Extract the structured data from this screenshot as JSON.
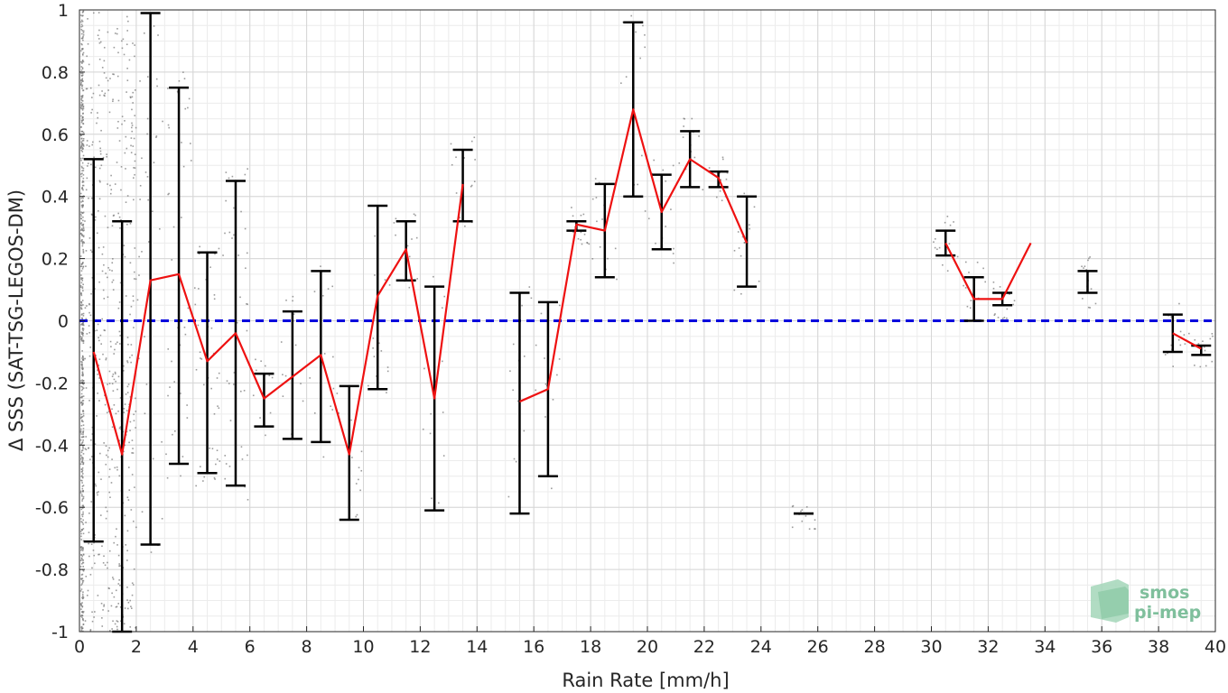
{
  "chart_data": {
    "type": "line",
    "title": "",
    "xlabel": "Rain Rate [mm/h]",
    "ylabel": "Δ SSS (SAT-TSG-LEGOS-DM)",
    "xlim": [
      0,
      40
    ],
    "ylim": [
      -1,
      1
    ],
    "x_ticks": [
      0,
      2,
      4,
      6,
      8,
      10,
      12,
      14,
      16,
      18,
      20,
      22,
      24,
      26,
      28,
      30,
      32,
      34,
      36,
      38,
      40
    ],
    "y_ticks": [
      -1,
      -0.8,
      -0.6,
      -0.4,
      -0.2,
      0,
      0.2,
      0.4,
      0.6,
      0.8,
      1
    ],
    "y_tick_labels": [
      "-1",
      "-0.8",
      "-0.6",
      "-0.4",
      "-0.2",
      "0",
      "0.2",
      "0.4",
      "0.6",
      "0.8",
      "1"
    ],
    "grid": true,
    "grid_minor": true,
    "reference_line": {
      "y": 0,
      "color": "#0000dd",
      "style": "dashed"
    },
    "colors": {
      "mean_line": "#ee1111",
      "error_bars": "#000000",
      "scatter": "#7a7a7a",
      "zero_line": "#0000dd"
    },
    "series": [
      {
        "type": "errorbar",
        "x": [
          0.5,
          1.5,
          2.5,
          3.5,
          4.5,
          5.5,
          6.5,
          7.5,
          8.5,
          9.5,
          10.5,
          11.5,
          12.5,
          13.5,
          15.5,
          16.5,
          17.5,
          18.5,
          19.5,
          20.5,
          21.5,
          22.5,
          23.5,
          25.5,
          30.5,
          31.5,
          32.5,
          35.5,
          38.5,
          39.5
        ],
        "lower": [
          -0.71,
          -1.0,
          -0.72,
          -0.46,
          -0.49,
          -0.53,
          -0.34,
          -0.38,
          -0.39,
          -0.64,
          -0.22,
          0.13,
          -0.61,
          0.32,
          -0.62,
          -0.5,
          0.29,
          0.14,
          0.4,
          0.23,
          0.43,
          0.43,
          0.11,
          -0.62,
          0.21,
          0.0,
          0.05,
          0.09,
          -0.1,
          -0.11
        ],
        "upper": [
          0.52,
          0.32,
          0.99,
          0.75,
          0.22,
          0.45,
          -0.17,
          0.03,
          0.16,
          -0.21,
          0.37,
          0.32,
          0.11,
          0.55,
          0.09,
          0.06,
          0.32,
          0.44,
          0.96,
          0.47,
          0.61,
          0.48,
          0.4,
          -0.62,
          0.29,
          0.14,
          0.09,
          0.16,
          0.02,
          -0.08
        ]
      },
      {
        "type": "line",
        "segments": [
          {
            "x": [
              0.5,
              1.5,
              2.5,
              3.5,
              4.5,
              5.5,
              6.5,
              7.5,
              8.5,
              9.5,
              10.5,
              11.5,
              12.5,
              13.5
            ],
            "y": [
              -0.1,
              -0.43,
              0.13,
              0.15,
              -0.13,
              -0.04,
              -0.25,
              -0.18,
              -0.11,
              -0.43,
              0.08,
              0.23,
              -0.25,
              0.44
            ]
          },
          {
            "x": [
              15.5,
              16.5,
              17.5,
              18.5,
              19.5,
              20.5,
              21.5,
              22.5,
              23.5
            ],
            "y": [
              -0.26,
              -0.22,
              0.31,
              0.29,
              0.68,
              0.35,
              0.52,
              0.46,
              0.25
            ]
          },
          {
            "x": [
              30.5,
              31.5,
              32.5,
              33.5
            ],
            "y": [
              0.25,
              0.07,
              0.07,
              0.25
            ]
          },
          {
            "x": [
              38.5,
              39.5
            ],
            "y": [
              -0.04,
              -0.09
            ]
          }
        ]
      }
    ]
  },
  "logo": {
    "line1": "smos",
    "line2": "pi-mep"
  }
}
